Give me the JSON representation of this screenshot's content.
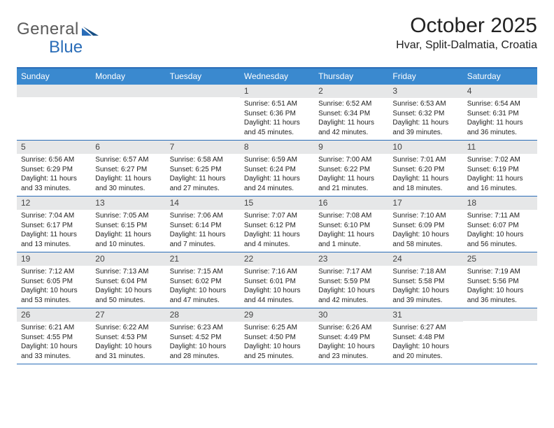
{
  "brand": {
    "general": "General",
    "blue": "Blue"
  },
  "title": {
    "month": "October 2025",
    "location": "Hvar, Split-Dalmatia, Croatia"
  },
  "colors": {
    "accent": "#3a89cf",
    "rule": "#2a6db8",
    "dayHeader": "#e6e7e8",
    "text": "#222222",
    "white": "#ffffff"
  },
  "dayNames": [
    "Sunday",
    "Monday",
    "Tuesday",
    "Wednesday",
    "Thursday",
    "Friday",
    "Saturday"
  ],
  "typography": {
    "month_fontsize": 30,
    "location_fontsize": 16,
    "dayname_fontsize": 12,
    "body_fontsize": 10
  },
  "weeks": [
    [
      {
        "n": "",
        "sunrise": "",
        "sunset": "",
        "daylight1": "",
        "daylight2": ""
      },
      {
        "n": "",
        "sunrise": "",
        "sunset": "",
        "daylight1": "",
        "daylight2": ""
      },
      {
        "n": "",
        "sunrise": "",
        "sunset": "",
        "daylight1": "",
        "daylight2": ""
      },
      {
        "n": "1",
        "sunrise": "Sunrise: 6:51 AM",
        "sunset": "Sunset: 6:36 PM",
        "daylight1": "Daylight: 11 hours",
        "daylight2": "and 45 minutes."
      },
      {
        "n": "2",
        "sunrise": "Sunrise: 6:52 AM",
        "sunset": "Sunset: 6:34 PM",
        "daylight1": "Daylight: 11 hours",
        "daylight2": "and 42 minutes."
      },
      {
        "n": "3",
        "sunrise": "Sunrise: 6:53 AM",
        "sunset": "Sunset: 6:32 PM",
        "daylight1": "Daylight: 11 hours",
        "daylight2": "and 39 minutes."
      },
      {
        "n": "4",
        "sunrise": "Sunrise: 6:54 AM",
        "sunset": "Sunset: 6:31 PM",
        "daylight1": "Daylight: 11 hours",
        "daylight2": "and 36 minutes."
      }
    ],
    [
      {
        "n": "5",
        "sunrise": "Sunrise: 6:56 AM",
        "sunset": "Sunset: 6:29 PM",
        "daylight1": "Daylight: 11 hours",
        "daylight2": "and 33 minutes."
      },
      {
        "n": "6",
        "sunrise": "Sunrise: 6:57 AM",
        "sunset": "Sunset: 6:27 PM",
        "daylight1": "Daylight: 11 hours",
        "daylight2": "and 30 minutes."
      },
      {
        "n": "7",
        "sunrise": "Sunrise: 6:58 AM",
        "sunset": "Sunset: 6:25 PM",
        "daylight1": "Daylight: 11 hours",
        "daylight2": "and 27 minutes."
      },
      {
        "n": "8",
        "sunrise": "Sunrise: 6:59 AM",
        "sunset": "Sunset: 6:24 PM",
        "daylight1": "Daylight: 11 hours",
        "daylight2": "and 24 minutes."
      },
      {
        "n": "9",
        "sunrise": "Sunrise: 7:00 AM",
        "sunset": "Sunset: 6:22 PM",
        "daylight1": "Daylight: 11 hours",
        "daylight2": "and 21 minutes."
      },
      {
        "n": "10",
        "sunrise": "Sunrise: 7:01 AM",
        "sunset": "Sunset: 6:20 PM",
        "daylight1": "Daylight: 11 hours",
        "daylight2": "and 18 minutes."
      },
      {
        "n": "11",
        "sunrise": "Sunrise: 7:02 AM",
        "sunset": "Sunset: 6:19 PM",
        "daylight1": "Daylight: 11 hours",
        "daylight2": "and 16 minutes."
      }
    ],
    [
      {
        "n": "12",
        "sunrise": "Sunrise: 7:04 AM",
        "sunset": "Sunset: 6:17 PM",
        "daylight1": "Daylight: 11 hours",
        "daylight2": "and 13 minutes."
      },
      {
        "n": "13",
        "sunrise": "Sunrise: 7:05 AM",
        "sunset": "Sunset: 6:15 PM",
        "daylight1": "Daylight: 11 hours",
        "daylight2": "and 10 minutes."
      },
      {
        "n": "14",
        "sunrise": "Sunrise: 7:06 AM",
        "sunset": "Sunset: 6:14 PM",
        "daylight1": "Daylight: 11 hours",
        "daylight2": "and 7 minutes."
      },
      {
        "n": "15",
        "sunrise": "Sunrise: 7:07 AM",
        "sunset": "Sunset: 6:12 PM",
        "daylight1": "Daylight: 11 hours",
        "daylight2": "and 4 minutes."
      },
      {
        "n": "16",
        "sunrise": "Sunrise: 7:08 AM",
        "sunset": "Sunset: 6:10 PM",
        "daylight1": "Daylight: 11 hours",
        "daylight2": "and 1 minute."
      },
      {
        "n": "17",
        "sunrise": "Sunrise: 7:10 AM",
        "sunset": "Sunset: 6:09 PM",
        "daylight1": "Daylight: 10 hours",
        "daylight2": "and 58 minutes."
      },
      {
        "n": "18",
        "sunrise": "Sunrise: 7:11 AM",
        "sunset": "Sunset: 6:07 PM",
        "daylight1": "Daylight: 10 hours",
        "daylight2": "and 56 minutes."
      }
    ],
    [
      {
        "n": "19",
        "sunrise": "Sunrise: 7:12 AM",
        "sunset": "Sunset: 6:05 PM",
        "daylight1": "Daylight: 10 hours",
        "daylight2": "and 53 minutes."
      },
      {
        "n": "20",
        "sunrise": "Sunrise: 7:13 AM",
        "sunset": "Sunset: 6:04 PM",
        "daylight1": "Daylight: 10 hours",
        "daylight2": "and 50 minutes."
      },
      {
        "n": "21",
        "sunrise": "Sunrise: 7:15 AM",
        "sunset": "Sunset: 6:02 PM",
        "daylight1": "Daylight: 10 hours",
        "daylight2": "and 47 minutes."
      },
      {
        "n": "22",
        "sunrise": "Sunrise: 7:16 AM",
        "sunset": "Sunset: 6:01 PM",
        "daylight1": "Daylight: 10 hours",
        "daylight2": "and 44 minutes."
      },
      {
        "n": "23",
        "sunrise": "Sunrise: 7:17 AM",
        "sunset": "Sunset: 5:59 PM",
        "daylight1": "Daylight: 10 hours",
        "daylight2": "and 42 minutes."
      },
      {
        "n": "24",
        "sunrise": "Sunrise: 7:18 AM",
        "sunset": "Sunset: 5:58 PM",
        "daylight1": "Daylight: 10 hours",
        "daylight2": "and 39 minutes."
      },
      {
        "n": "25",
        "sunrise": "Sunrise: 7:19 AM",
        "sunset": "Sunset: 5:56 PM",
        "daylight1": "Daylight: 10 hours",
        "daylight2": "and 36 minutes."
      }
    ],
    [
      {
        "n": "26",
        "sunrise": "Sunrise: 6:21 AM",
        "sunset": "Sunset: 4:55 PM",
        "daylight1": "Daylight: 10 hours",
        "daylight2": "and 33 minutes."
      },
      {
        "n": "27",
        "sunrise": "Sunrise: 6:22 AM",
        "sunset": "Sunset: 4:53 PM",
        "daylight1": "Daylight: 10 hours",
        "daylight2": "and 31 minutes."
      },
      {
        "n": "28",
        "sunrise": "Sunrise: 6:23 AM",
        "sunset": "Sunset: 4:52 PM",
        "daylight1": "Daylight: 10 hours",
        "daylight2": "and 28 minutes."
      },
      {
        "n": "29",
        "sunrise": "Sunrise: 6:25 AM",
        "sunset": "Sunset: 4:50 PM",
        "daylight1": "Daylight: 10 hours",
        "daylight2": "and 25 minutes."
      },
      {
        "n": "30",
        "sunrise": "Sunrise: 6:26 AM",
        "sunset": "Sunset: 4:49 PM",
        "daylight1": "Daylight: 10 hours",
        "daylight2": "and 23 minutes."
      },
      {
        "n": "31",
        "sunrise": "Sunrise: 6:27 AM",
        "sunset": "Sunset: 4:48 PM",
        "daylight1": "Daylight: 10 hours",
        "daylight2": "and 20 minutes."
      },
      {
        "n": "",
        "sunrise": "",
        "sunset": "",
        "daylight1": "",
        "daylight2": ""
      }
    ]
  ]
}
